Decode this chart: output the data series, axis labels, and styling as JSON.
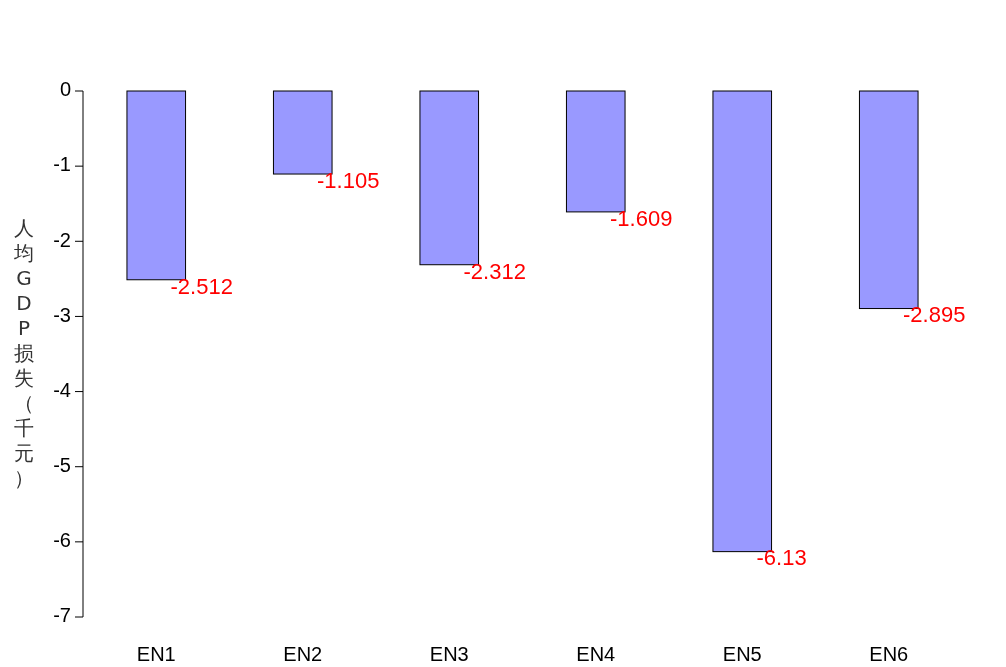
{
  "chart_data": {
    "type": "bar",
    "ylabel": "人均GDP损失（千元）",
    "categories": [
      "EN1",
      "EN2",
      "EN3",
      "EN4",
      "EN5",
      "EN6"
    ],
    "values": [
      -2.512,
      -1.105,
      -2.312,
      -1.609,
      -6.13,
      -2.895
    ],
    "color": "#9999ff",
    "ylim": [
      -7,
      0
    ],
    "yticks": [
      0,
      -1,
      -2,
      -3,
      -4,
      -5,
      -6,
      -7
    ],
    "data_labels": true
  }
}
